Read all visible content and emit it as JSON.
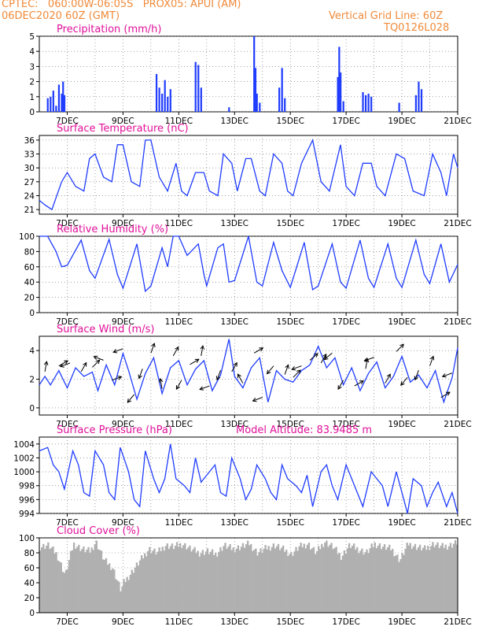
{
  "header": {
    "line1": "CPTEC:   060:00W-06:05S   PROX05: APUI (AM)",
    "line2": "06DEC2020 60Z (GMT)",
    "right1": "Vertical Grid Line: 60Z",
    "right2": "TQ0126L028",
    "color": "#f08a3a"
  },
  "colors": {
    "title": "#e0109a",
    "line": "#1f3cff",
    "cloud": "#b0b0b0",
    "grid": "#666666"
  },
  "x_ticks": [
    "7DEC",
    "9DEC",
    "11DEC",
    "13DEC",
    "15DEC",
    "17DEC",
    "19DEC",
    "21DEC"
  ],
  "model_altitude": "Model Altitude: 83.9485 m",
  "chart_data": [
    {
      "type": "bar",
      "title": "Precipitation (mm/h)",
      "ylim": [
        0,
        5
      ],
      "yticks": [
        "0",
        "1",
        "2",
        "3",
        "4",
        "5"
      ],
      "x_days": [
        6.3,
        6.4,
        6.5,
        6.6,
        6.7,
        6.8,
        6.85,
        6.9,
        10.2,
        10.3,
        10.4,
        10.5,
        10.6,
        10.7,
        11.6,
        11.7,
        11.8,
        12.8,
        13.7,
        13.75,
        13.8,
        13.9,
        14.6,
        14.7,
        14.8,
        16.7,
        16.75,
        16.8,
        16.9,
        17.6,
        17.7,
        17.8,
        17.9,
        18.9,
        19.5,
        19.6,
        19.7
      ],
      "values": [
        0.9,
        1.0,
        1.4,
        0.4,
        1.8,
        1.2,
        2.0,
        1.1,
        2.5,
        1.6,
        1.2,
        2.1,
        1.0,
        1.5,
        3.3,
        3.1,
        1.6,
        0.3,
        5.0,
        2.9,
        1.2,
        0.6,
        1.6,
        2.9,
        0.9,
        2.3,
        4.3,
        2.6,
        0.7,
        1.3,
        1.1,
        1.2,
        1.0,
        0.6,
        1.1,
        2.0,
        1.5
      ]
    },
    {
      "type": "line",
      "title": "Surface Temperature (nC)",
      "ylim": [
        20,
        37
      ],
      "yticks": [
        "21",
        "24",
        "27",
        "30",
        "33",
        "36"
      ],
      "x_days": [
        6.0,
        6.2,
        6.45,
        6.8,
        7.0,
        7.3,
        7.6,
        7.8,
        8.0,
        8.3,
        8.6,
        8.8,
        9.0,
        9.3,
        9.6,
        9.8,
        10.0,
        10.3,
        10.6,
        10.9,
        11.1,
        11.3,
        11.6,
        11.9,
        12.1,
        12.4,
        12.6,
        12.9,
        13.1,
        13.4,
        13.6,
        13.9,
        14.1,
        14.4,
        14.7,
        14.9,
        15.1,
        15.4,
        15.8,
        16.1,
        16.4,
        16.8,
        17.0,
        17.3,
        17.6,
        17.9,
        18.1,
        18.4,
        18.8,
        19.1,
        19.4,
        19.8,
        20.1,
        20.4,
        20.6,
        20.85,
        21.0
      ],
      "values": [
        23,
        22,
        21,
        27,
        29,
        26,
        25,
        32,
        33,
        28,
        27,
        35,
        35,
        27,
        26,
        36,
        36,
        28,
        25,
        31,
        25,
        24,
        29,
        29,
        25,
        24,
        33,
        31,
        25,
        32,
        32,
        25,
        24,
        33,
        31,
        25,
        24,
        31,
        36,
        27,
        25,
        35,
        26,
        24,
        31,
        31,
        26,
        24,
        33,
        32,
        25,
        24,
        33,
        29,
        24,
        33,
        30
      ]
    },
    {
      "type": "line",
      "title": "Relative Humidity (%)",
      "ylim": [
        0,
        100
      ],
      "yticks": [
        "0",
        "20",
        "40",
        "60",
        "80",
        "100"
      ],
      "x_days": [
        6.0,
        6.3,
        6.6,
        6.8,
        7.0,
        7.5,
        7.8,
        8.0,
        8.5,
        8.8,
        9.0,
        9.5,
        9.8,
        10.0,
        10.4,
        10.6,
        10.8,
        11.0,
        11.3,
        11.7,
        11.9,
        12.0,
        12.4,
        12.6,
        12.8,
        13.0,
        13.5,
        13.8,
        14.0,
        14.4,
        14.7,
        15.0,
        15.5,
        15.8,
        16.0,
        16.5,
        16.8,
        17.0,
        17.5,
        17.8,
        18.0,
        18.5,
        18.8,
        19.0,
        19.5,
        19.8,
        20.0,
        20.4,
        20.7,
        21.0
      ],
      "values": [
        100,
        100,
        80,
        60,
        62,
        95,
        55,
        45,
        96,
        50,
        32,
        90,
        28,
        35,
        85,
        60,
        100,
        100,
        75,
        90,
        50,
        35,
        85,
        90,
        40,
        42,
        100,
        40,
        35,
        92,
        55,
        33,
        92,
        30,
        35,
        90,
        40,
        32,
        95,
        45,
        33,
        90,
        45,
        33,
        95,
        50,
        38,
        90,
        40,
        63
      ]
    },
    {
      "type": "line",
      "title": "Surface Wind (m/s)",
      "ylim": [
        -0.5,
        5
      ],
      "yticks": [
        "0",
        "2",
        "4"
      ],
      "x_days": [
        6.0,
        6.2,
        6.4,
        6.7,
        7.0,
        7.3,
        7.6,
        7.9,
        8.1,
        8.4,
        8.7,
        9.0,
        9.2,
        9.5,
        9.8,
        10.1,
        10.4,
        10.7,
        11.0,
        11.3,
        11.6,
        11.9,
        12.2,
        12.5,
        12.8,
        13.0,
        13.3,
        13.6,
        13.9,
        14.2,
        14.5,
        14.8,
        15.1,
        15.4,
        15.7,
        16.0,
        16.3,
        16.6,
        16.9,
        17.2,
        17.5,
        17.8,
        18.1,
        18.4,
        18.7,
        19.0,
        19.3,
        19.6,
        19.9,
        20.2,
        20.5,
        20.8,
        21.0
      ],
      "values": [
        1.6,
        2.2,
        1.6,
        2.6,
        1.4,
        2.8,
        2.2,
        2.5,
        1.2,
        3.0,
        1.6,
        3.8,
        2.6,
        0.6,
        2.4,
        3.5,
        1.0,
        2.8,
        3.3,
        1.6,
        2.7,
        3.3,
        1.2,
        2.3,
        4.8,
        2.2,
        1.4,
        2.8,
        3.5,
        0.4,
        2.6,
        2.0,
        1.8,
        2.6,
        3.0,
        4.3,
        2.8,
        3.5,
        1.6,
        2.8,
        1.2,
        2.4,
        3.2,
        1.4,
        2.2,
        3.6,
        1.8,
        2.3,
        1.4,
        2.6,
        0.4,
        2.1,
        4.2
      ],
      "arrow_days": [
        6.2,
        6.7,
        7.1,
        7.5,
        7.9,
        8.3,
        8.6,
        9.0,
        9.4,
        9.7,
        10.0,
        10.4,
        10.8,
        11.1,
        11.4,
        11.8,
        12.1,
        12.5,
        12.9,
        13.3,
        13.7,
        14.0,
        14.4,
        14.8,
        15.1,
        15.4,
        15.7,
        16.1,
        16.5,
        16.9,
        17.3,
        17.7,
        18.0,
        18.4,
        18.8,
        19.2,
        19.6,
        20.0,
        20.4,
        20.8
      ],
      "arrow_angles": [
        80,
        30,
        200,
        60,
        45,
        160,
        20,
        200,
        230,
        250,
        70,
        100,
        60,
        240,
        30,
        80,
        200,
        250,
        60,
        120,
        30,
        200,
        230,
        70,
        45,
        200,
        40,
        60,
        220,
        240,
        30,
        80,
        200,
        60,
        45,
        230,
        250,
        70,
        30,
        200
      ]
    },
    {
      "type": "line",
      "title": "Surface Pressure (hPa)",
      "ylim": [
        994,
        1005
      ],
      "yticks": [
        "994",
        "996",
        "998",
        "1000",
        "1002",
        "1004"
      ],
      "x_days": [
        6.0,
        6.3,
        6.5,
        6.7,
        6.9,
        7.2,
        7.4,
        7.6,
        7.8,
        8.0,
        8.3,
        8.5,
        8.7,
        8.9,
        9.2,
        9.4,
        9.6,
        9.8,
        10.1,
        10.3,
        10.5,
        10.7,
        10.9,
        11.2,
        11.4,
        11.6,
        11.8,
        12.1,
        12.3,
        12.5,
        12.7,
        12.9,
        13.2,
        13.4,
        13.6,
        13.8,
        14.1,
        14.3,
        14.5,
        14.7,
        14.9,
        15.2,
        15.4,
        15.6,
        15.8,
        16.1,
        16.3,
        16.5,
        16.7,
        17.0,
        17.2,
        17.4,
        17.6,
        17.9,
        18.1,
        18.3,
        18.5,
        18.8,
        19.0,
        19.2,
        19.4,
        19.7,
        19.9,
        20.1,
        20.3,
        20.6,
        20.8,
        21.0
      ],
      "values": [
        1003,
        1003.5,
        1001,
        1000,
        997.5,
        1003,
        1001,
        997,
        996.5,
        1003,
        1001,
        997,
        996,
        1003.5,
        1000,
        996,
        995,
        1003,
        999,
        997,
        999,
        1004,
        999,
        998,
        997,
        1002,
        998.5,
        1000,
        1001,
        997,
        996.5,
        1002,
        999,
        996,
        997.5,
        1001,
        999,
        997,
        996,
        1001,
        999,
        998,
        997,
        999.5,
        995,
        1000,
        1001,
        998,
        996,
        1001,
        999,
        997,
        995,
        1000,
        999,
        998,
        995,
        1000,
        997,
        994,
        999,
        998,
        995,
        997,
        998.5,
        995,
        997,
        994
      ]
    },
    {
      "type": "area",
      "title": "Cloud Cover (%)",
      "ylim": [
        0,
        100
      ],
      "yticks": [
        "0",
        "20",
        "40",
        "60",
        "80",
        "100"
      ],
      "x_days": [
        6.0,
        6.3,
        6.6,
        6.9,
        7.2,
        7.5,
        7.8,
        8.0,
        8.3,
        8.6,
        8.9,
        9.0,
        9.3,
        9.6,
        9.9,
        10.2,
        10.5,
        10.8,
        11.1,
        11.4,
        11.7,
        12.0,
        12.3,
        12.6,
        12.9,
        13.2,
        13.5,
        13.8,
        14.1,
        14.4,
        14.7,
        15.0,
        15.3,
        15.6,
        15.9,
        16.2,
        16.5,
        16.8,
        17.1,
        17.4,
        17.7,
        18.0,
        18.3,
        18.6,
        18.9,
        19.2,
        19.5,
        19.8,
        20.1,
        20.4,
        20.7,
        21.0
      ],
      "values": [
        88,
        90,
        78,
        50,
        92,
        85,
        82,
        95,
        70,
        60,
        30,
        40,
        55,
        70,
        85,
        80,
        90,
        88,
        92,
        85,
        80,
        82,
        78,
        90,
        85,
        88,
        92,
        80,
        86,
        90,
        85,
        78,
        88,
        92,
        80,
        95,
        88,
        75,
        90,
        85,
        80,
        92,
        88,
        85,
        70,
        92,
        88,
        85,
        92,
        88,
        90,
        95
      ]
    }
  ]
}
